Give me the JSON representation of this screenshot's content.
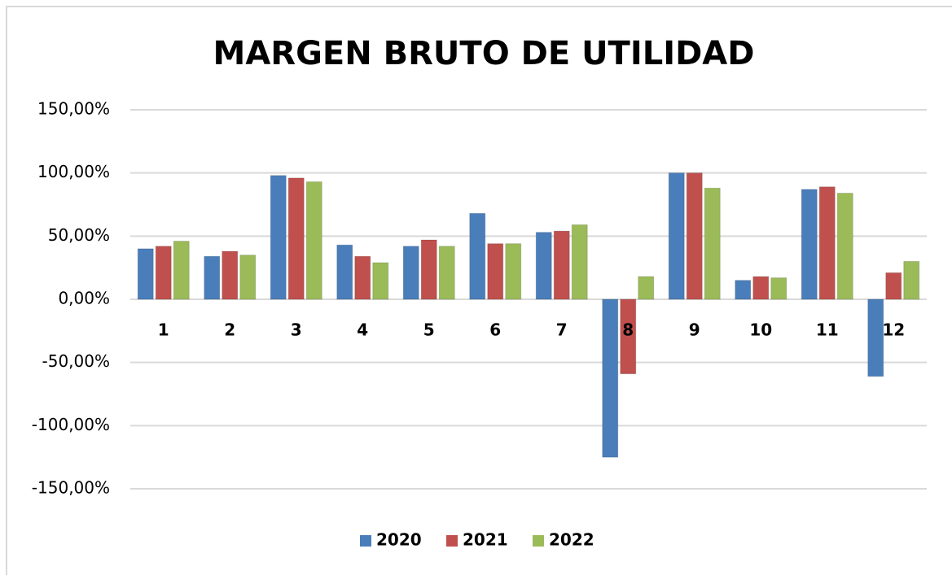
{
  "chart_data": {
    "type": "bar",
    "title": "MARGEN BRUTO DE UTILIDAD",
    "categories": [
      "1",
      "2",
      "3",
      "4",
      "5",
      "6",
      "7",
      "8",
      "9",
      "10",
      "11",
      "12"
    ],
    "series": [
      {
        "name": "2020",
        "color": "#4a7ebb",
        "values": [
          40,
          34,
          98,
          43,
          42,
          68,
          53,
          -125,
          100,
          15,
          87,
          -61
        ]
      },
      {
        "name": "2021",
        "color": "#c0504d",
        "values": [
          42,
          38,
          96,
          34,
          47,
          44,
          54,
          -59,
          100,
          18,
          89,
          21
        ]
      },
      {
        "name": "2022",
        "color": "#9bbb59",
        "values": [
          46,
          35,
          93,
          29,
          42,
          44,
          59,
          18,
          88,
          17,
          84,
          30
        ]
      }
    ],
    "ylim": [
      -150,
      150
    ],
    "yticks": [
      {
        "value": -150,
        "label": "-150,00%"
      },
      {
        "value": -100,
        "label": "-100,00%"
      },
      {
        "value": -50,
        "label": "-50,00%"
      },
      {
        "value": 0,
        "label": "0,00%"
      },
      {
        "value": 50,
        "label": "50,00%"
      },
      {
        "value": 100,
        "label": "100,00%"
      },
      {
        "value": 150,
        "label": "150,00%"
      }
    ],
    "grid": true,
    "legend": "bottom"
  }
}
